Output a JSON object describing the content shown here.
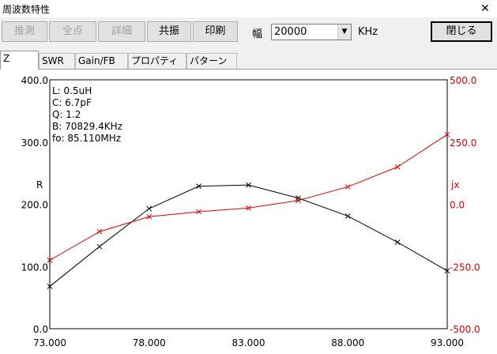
{
  "window": {
    "title": "周波数特性"
  },
  "toolbar": {
    "buttons": [
      {
        "label": "推測",
        "enabled": false
      },
      {
        "label": "全点",
        "enabled": false
      },
      {
        "label": "詳細",
        "enabled": false
      },
      {
        "label": "共振",
        "enabled": true
      },
      {
        "label": "印刷",
        "enabled": true
      }
    ],
    "width_label": "幅",
    "width_value": "20000",
    "width_unit": "KHz",
    "close_label": "閉じる"
  },
  "tabs": [
    "Z",
    "SWR",
    "Gain/FB",
    "プロパティ",
    "パターン"
  ],
  "active_tab": 0,
  "chart_data": {
    "type": "line",
    "x": [
      73.0,
      75.5,
      78.0,
      80.5,
      83.0,
      85.5,
      88.0,
      90.5,
      93.0
    ],
    "x_ticks": [
      "73.000",
      "78.000",
      "83.000",
      "88.000",
      "93.000"
    ],
    "xlim": [
      73.0,
      93.0
    ],
    "left_axis": {
      "label": "R",
      "ticks": [
        "0.0",
        "100.0",
        "200.0",
        "300.0",
        "400.0"
      ],
      "range": [
        0,
        400
      ]
    },
    "right_axis": {
      "label": "jx",
      "ticks": [
        "-500.0",
        "-250.0",
        "0.0",
        "250.0",
        "500.0"
      ],
      "range": [
        -500,
        500
      ]
    },
    "series": [
      {
        "axis": "left",
        "color": "#000000",
        "marker": "x",
        "values": [
          68,
          132,
          193,
          229,
          231,
          210,
          181,
          139,
          93
        ]
      },
      {
        "axis": "right",
        "color": "#e00000",
        "marker": "x",
        "values": [
          -225,
          -110,
          -50,
          -30,
          -15,
          15,
          70,
          150,
          280
        ]
      }
    ],
    "annotations": [
      "L: 0.5uH",
      "C: 6.7pF",
      "Q: 1.2",
      "B: 70829.4KHz",
      "fo: 85.110MHz"
    ],
    "grid": false,
    "colors": {
      "left": "#000000",
      "right": "#e00000"
    }
  }
}
